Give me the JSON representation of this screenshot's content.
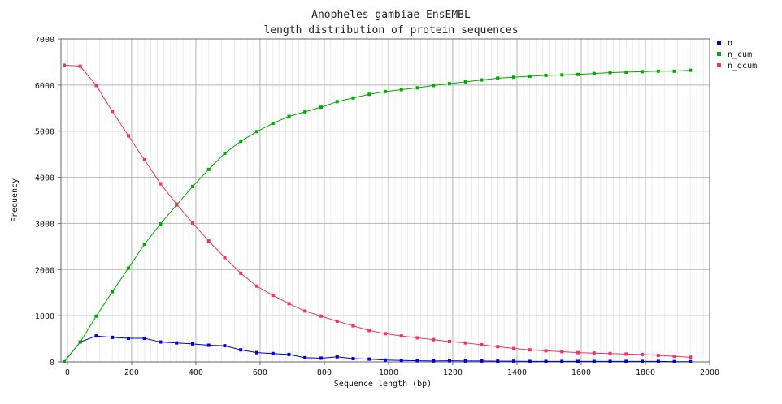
{
  "chart_data": {
    "type": "line",
    "title": [
      "Anopheles gambiae EnsEMBL",
      "length distribution of protein sequences"
    ],
    "xlabel": "Sequence length (bp)",
    "ylabel": "Frequency",
    "xlim": [
      -20,
      2000
    ],
    "ylim": [
      0,
      7000
    ],
    "xticks": [
      0,
      200,
      400,
      600,
      800,
      1000,
      1200,
      1400,
      1600,
      1800,
      2000
    ],
    "yticks": [
      0,
      1000,
      2000,
      3000,
      4000,
      5000,
      6000,
      7000
    ],
    "grid": true,
    "legend_position": "top-right",
    "x": [
      -10,
      40,
      90,
      140,
      190,
      240,
      290,
      340,
      390,
      440,
      490,
      540,
      590,
      640,
      690,
      740,
      790,
      840,
      890,
      940,
      990,
      1040,
      1090,
      1140,
      1190,
      1240,
      1290,
      1340,
      1390,
      1440,
      1490,
      1540,
      1590,
      1640,
      1690,
      1740,
      1790,
      1840,
      1890,
      1940
    ],
    "series": [
      {
        "name": "n",
        "color": "#0000cc",
        "values": [
          0,
          430,
          560,
          530,
          510,
          510,
          430,
          410,
          390,
          360,
          350,
          260,
          200,
          180,
          160,
          90,
          80,
          110,
          70,
          60,
          40,
          30,
          25,
          20,
          25,
          20,
          20,
          15,
          15,
          10,
          10,
          10,
          10,
          10,
          10,
          10,
          10,
          10,
          5,
          5
        ]
      },
      {
        "name": "n_cum",
        "color": "#00aa00",
        "values": [
          0,
          430,
          990,
          1520,
          2030,
          2550,
          2990,
          3400,
          3800,
          4170,
          4520,
          4780,
          4990,
          5170,
          5320,
          5420,
          5520,
          5640,
          5720,
          5800,
          5860,
          5900,
          5940,
          5990,
          6030,
          6070,
          6110,
          6150,
          6170,
          6190,
          6210,
          6220,
          6230,
          6250,
          6270,
          6280,
          6290,
          6300,
          6300,
          6320
        ]
      },
      {
        "name": "n_dcum",
        "color": "#ee3366",
        "values": [
          6430,
          6410,
          5990,
          5430,
          4900,
          4380,
          3860,
          3420,
          3010,
          2620,
          2260,
          1920,
          1640,
          1440,
          1260,
          1100,
          990,
          880,
          780,
          680,
          610,
          560,
          520,
          480,
          440,
          410,
          370,
          330,
          290,
          260,
          240,
          220,
          200,
          190,
          180,
          170,
          160,
          140,
          120,
          100
        ]
      }
    ]
  }
}
